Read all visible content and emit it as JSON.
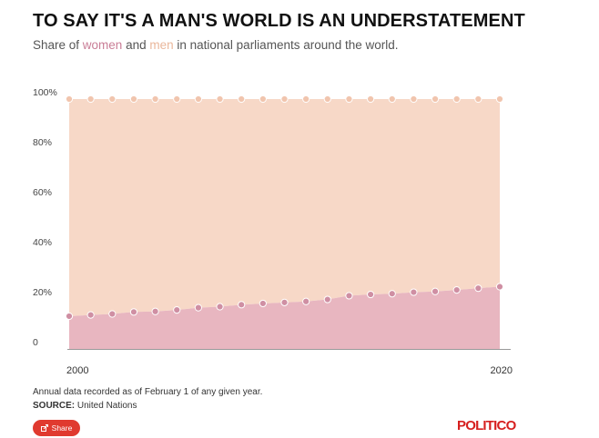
{
  "header": {
    "title": "TO SAY IT'S A MAN'S WORLD IS AN UNDERSTATEMENT",
    "subtitle_prefix": "Share of ",
    "subtitle_women": "women",
    "subtitle_and": " and ",
    "subtitle_men": "men",
    "subtitle_suffix": " in national parliaments around the world."
  },
  "colors": {
    "women_fill": "#e8b6c0",
    "women_point": "#cf8fa3",
    "men_fill": "#f7d8c7",
    "men_point": "#f1c5ae",
    "axis": "#999999"
  },
  "chart_data": {
    "type": "area",
    "stacked": true,
    "x": [
      2000,
      2001,
      2002,
      2003,
      2004,
      2005,
      2006,
      2007,
      2008,
      2009,
      2010,
      2011,
      2012,
      2013,
      2014,
      2015,
      2016,
      2017,
      2018,
      2019,
      2020
    ],
    "series": [
      {
        "name": "women",
        "values": [
          13.1,
          13.6,
          14.0,
          14.8,
          15.0,
          15.6,
          16.5,
          16.9,
          17.7,
          18.2,
          18.6,
          19.0,
          19.8,
          21.3,
          21.8,
          22.1,
          22.7,
          23.0,
          23.6,
          24.3,
          24.9
        ]
      },
      {
        "name": "men",
        "values": [
          86.9,
          86.4,
          86.0,
          85.2,
          85.0,
          84.4,
          83.5,
          83.1,
          82.3,
          81.8,
          81.4,
          81.0,
          80.2,
          78.7,
          78.2,
          77.9,
          77.3,
          77.0,
          76.4,
          75.7,
          75.1
        ]
      }
    ],
    "ylim": [
      0,
      100
    ],
    "yticks": [
      0,
      20,
      40,
      60,
      80,
      100
    ],
    "ytick_labels": [
      "0",
      "20%",
      "40%",
      "60%",
      "80%",
      "100%"
    ],
    "xtick_labels": [
      "2000",
      "2020"
    ],
    "title": "TO SAY IT'S A MAN'S WORLD IS AN UNDERSTATEMENT",
    "xlabel": "",
    "ylabel": ""
  },
  "footer": {
    "note": "Annual data recorded as of February 1 of any given year.",
    "source_label": "SOURCE:",
    "source_text": " United Nations",
    "share_label": "Share",
    "logo": "POLITICO"
  }
}
